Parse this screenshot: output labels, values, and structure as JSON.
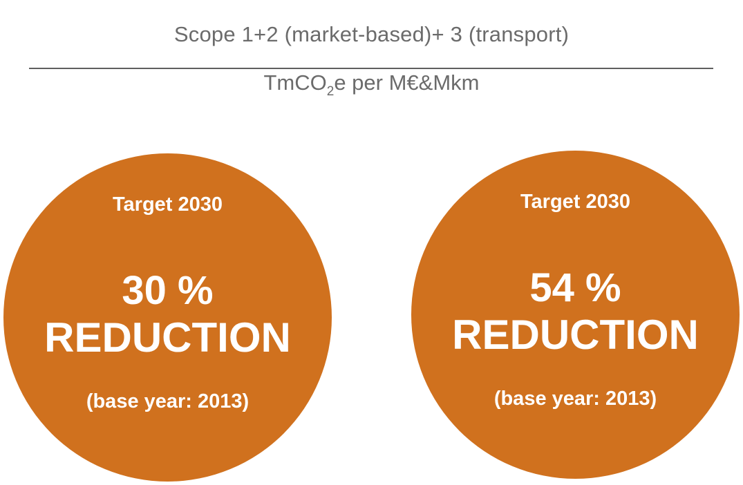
{
  "header": {
    "title": "Scope 1+2 (market-based)+ 3 (transport)",
    "unit_prefix": "TmCO",
    "unit_subscript": "2",
    "unit_suffix": "e per M€&Mkm"
  },
  "colors": {
    "accent": "#d0711e",
    "text_on_accent": "#ffffff",
    "header_text": "#6b6b6b",
    "divider": "#5e5e5e"
  },
  "targets": [
    {
      "label": "Target 2030",
      "percent": "30 %",
      "reduction": "REDUCTION",
      "base_year": "(base year: 2013)"
    },
    {
      "label": "Target 2030",
      "percent": "54 %",
      "reduction": "REDUCTION",
      "base_year": "(base year: 2013)"
    }
  ]
}
